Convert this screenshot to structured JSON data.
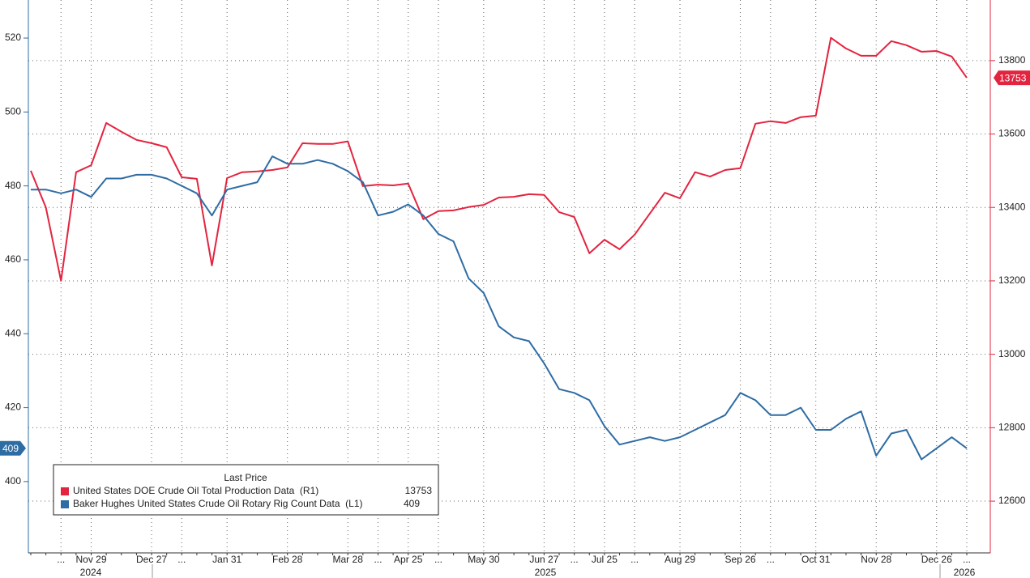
{
  "chart_data": {
    "type": "line",
    "categories": [
      null,
      null,
      "...",
      null,
      "Nov 29",
      null,
      null,
      null,
      "Dec 27",
      null,
      "...",
      null,
      null,
      "Jan 31",
      null,
      null,
      null,
      "Feb 28",
      null,
      null,
      null,
      "Mar 28",
      null,
      "...",
      null,
      "Apr 25",
      null,
      "...",
      null,
      null,
      "May 30",
      null,
      null,
      null,
      "Jun 27",
      null,
      "...",
      null,
      "Jul 25",
      null,
      "...",
      null,
      null,
      "Aug 29",
      null,
      null,
      null,
      "Sep 26",
      null,
      "...",
      null,
      null,
      "Oct 31",
      null,
      null,
      null,
      "Nov 28",
      null,
      null,
      null,
      "Dec 26",
      null,
      "..."
    ],
    "x_groups": [
      "2024",
      "2025",
      "2026"
    ],
    "series": [
      {
        "name": "United States DOE Crude Oil Total Production Data  (R1)",
        "color": "#e3243f",
        "axis": "y2",
        "values": [
          13500,
          13400,
          13200,
          13496,
          13515,
          13630,
          13606,
          13584,
          13575,
          13564,
          13482,
          13478,
          13242,
          13480,
          13496,
          13498,
          13502,
          13509,
          13575,
          13573,
          13573,
          13580,
          13458,
          13462,
          13460,
          13465,
          13368,
          13390,
          13392,
          13401,
          13407,
          13427,
          13429,
          13436,
          13434,
          13387,
          13374,
          13275,
          13312,
          13286,
          13326,
          13383,
          13440,
          13425,
          13496,
          13484,
          13502,
          13507,
          13628,
          13635,
          13630,
          13646,
          13650,
          13862,
          13833,
          13813,
          13813,
          13853,
          13842,
          13824,
          13826,
          13811,
          13753
        ]
      },
      {
        "name": "Baker Hughes United States Crude Oil Rotary Rig Count Data  (L1)",
        "color": "#2e6ca4",
        "axis": "y",
        "values": [
          479,
          479,
          478,
          479,
          477,
          482,
          482,
          483,
          483,
          482,
          480,
          478,
          472,
          479,
          480,
          481,
          488,
          486,
          486,
          487,
          486,
          484,
          481,
          472,
          473,
          475,
          472,
          467,
          465,
          455,
          451,
          442,
          439,
          438,
          432,
          425,
          424,
          422,
          415,
          410,
          411,
          412,
          411,
          412,
          414,
          416,
          418,
          424,
          422,
          418,
          418,
          420,
          414,
          414,
          417,
          419,
          407,
          413,
          414,
          406,
          409,
          412,
          409
        ]
      }
    ],
    "legend_title": "Last Price",
    "legend": "lower left",
    "ylim": [
      380.7,
      530.3
    ],
    "yticks": [
      400,
      420,
      440,
      460,
      480,
      500,
      520
    ],
    "y2lim": [
      12459,
      13965
    ],
    "y2ticks": [
      12600,
      12800,
      13000,
      13200,
      13400,
      13600,
      13800
    ],
    "grid": true
  }
}
